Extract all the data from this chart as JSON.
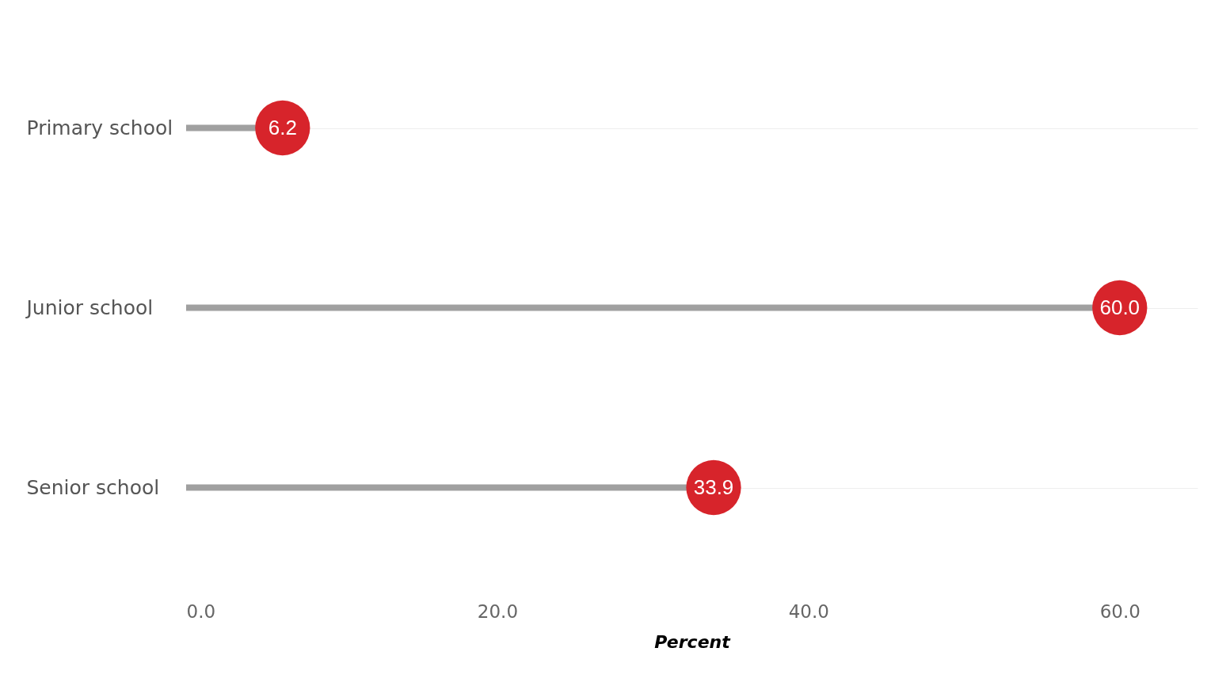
{
  "chart_data": {
    "type": "lollipop",
    "orientation": "horizontal",
    "categories": [
      "Primary school",
      "Junior school",
      "Senior school"
    ],
    "series": [
      {
        "color": "#d7242b",
        "values": [
          6.2,
          60.0,
          33.9
        ],
        "value_labels": [
          "6.2",
          "60.0",
          "33.9"
        ]
      }
    ],
    "xlabel": "Percent",
    "xlim": [
      0,
      65
    ],
    "xticks": [
      {
        "value": 0,
        "label": "0.0"
      },
      {
        "value": 20,
        "label": "20.0"
      },
      {
        "value": 40,
        "label": "40.0"
      },
      {
        "value": 60,
        "label": "60.0"
      }
    ],
    "grid": "y",
    "marker": "circle"
  }
}
